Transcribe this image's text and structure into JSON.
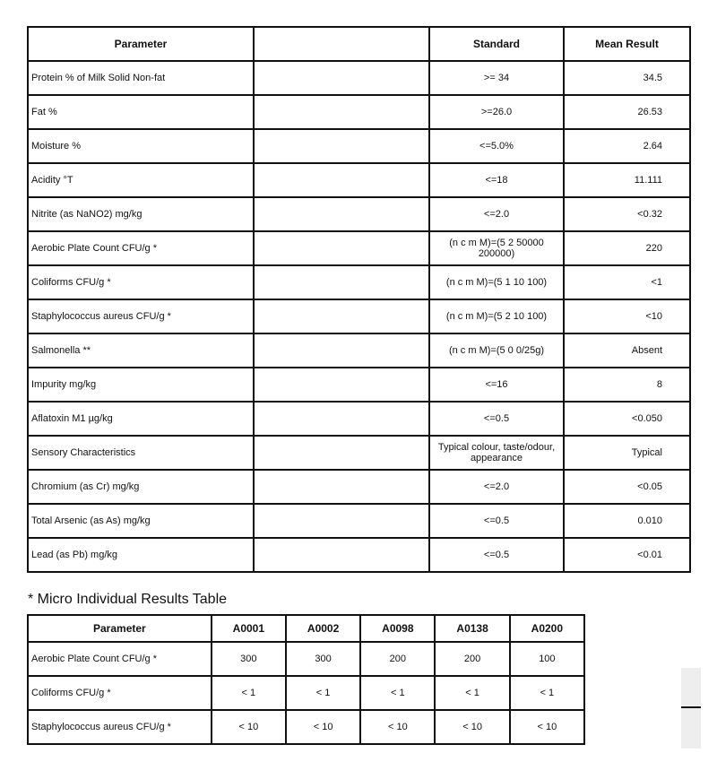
{
  "main_table": {
    "headers": [
      "Parameter",
      "",
      "Standard",
      "Mean Result"
    ],
    "rows": [
      {
        "parameter": "Protein % of Milk Solid Non-fat",
        "standard": ">= 34",
        "result": "34.5"
      },
      {
        "parameter": "Fat %",
        "standard": ">=26.0",
        "result": "26.53"
      },
      {
        "parameter": "Moisture %",
        "standard": "<=5.0%",
        "result": "2.64"
      },
      {
        "parameter": "Acidity °T",
        "standard": "<=18",
        "result": "11.111"
      },
      {
        "parameter": "Nitrite (as NaNO2) mg/kg",
        "standard": "<=2.0",
        "result": "<0.32"
      },
      {
        "parameter": "Aerobic Plate Count CFU/g *",
        "standard": "(n c m M)=(5 2 50000 200000)",
        "result": "220"
      },
      {
        "parameter": "Coliforms CFU/g *",
        "standard": "(n c m M)=(5 1 10 100)",
        "result": "<1"
      },
      {
        "parameter": "Staphylococcus aureus CFU/g *",
        "standard": "(n c m M)=(5 2 10 100)",
        "result": "<10"
      },
      {
        "parameter": "Salmonella **",
        "standard": "(n c m M)=(5 0 0/25g)",
        "result": "Absent"
      },
      {
        "parameter": "Impurity mg/kg",
        "standard": "<=16",
        "result": "8"
      },
      {
        "parameter": "Aflatoxin M1  µg/kg",
        "standard": "<=0.5",
        "result": "<0.050"
      },
      {
        "parameter": "Sensory Characteristics",
        "standard": "Typical colour, taste/odour, appearance",
        "result": "Typical"
      },
      {
        "parameter": "Chromium (as Cr) mg/kg",
        "standard": "<=2.0",
        "result": "<0.05"
      },
      {
        "parameter": "Total Arsenic (as As) mg/kg",
        "standard": "<=0.5",
        "result": "0.010"
      },
      {
        "parameter": "Lead (as Pb) mg/kg",
        "standard": "<=0.5",
        "result": "<0.01"
      }
    ]
  },
  "micro_table": {
    "title": "* Micro Individual Results Table",
    "headers": [
      "Parameter",
      "A0001",
      "A0002",
      "A0098",
      "A0138",
      "A0200"
    ],
    "rows": [
      {
        "parameter": "Aerobic Plate Count CFU/g *",
        "values": [
          "300",
          "300",
          "200",
          "200",
          "100"
        ]
      },
      {
        "parameter": "Coliforms CFU/g *",
        "values": [
          "< 1",
          "< 1",
          "< 1",
          "< 1",
          "< 1"
        ]
      },
      {
        "parameter": "Staphylococcus aureus CFU/g *",
        "values": [
          "< 10",
          "< 10",
          "< 10",
          "< 10",
          "< 10"
        ]
      }
    ]
  }
}
